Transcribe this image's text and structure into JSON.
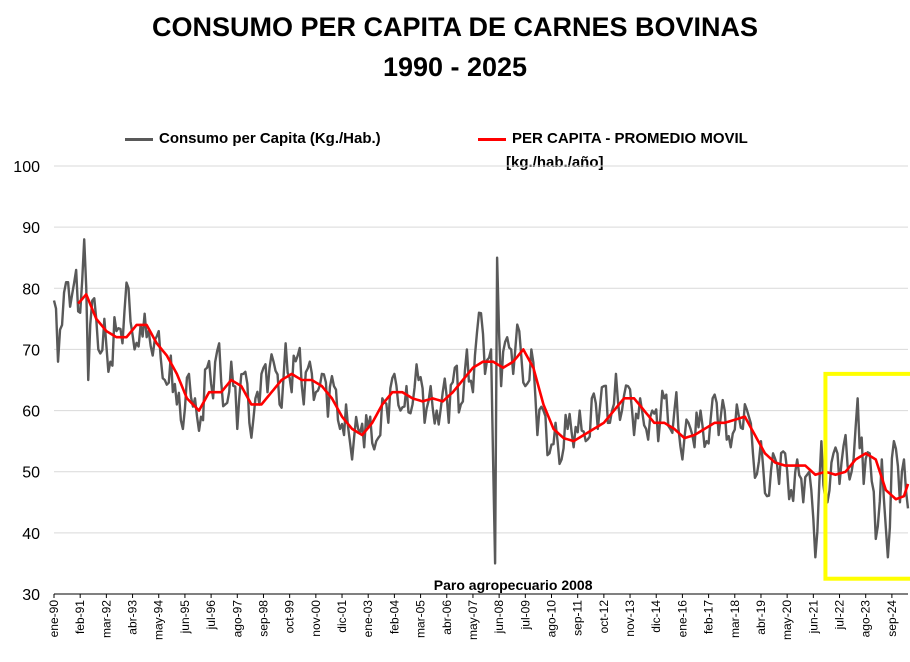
{
  "chart_data": {
    "type": "line",
    "title": "CONSUMO PER CAPITA DE CARNES BOVINAS",
    "subtitle": "1990 - 2025",
    "xlabel": "",
    "ylabel": "",
    "ylim": [
      30,
      100
    ],
    "yticks": [
      30,
      40,
      50,
      60,
      70,
      80,
      90,
      100
    ],
    "grid": "horizontal",
    "legend_position": "top",
    "x_tick_labels": [
      "ene-90",
      "feb-91",
      "mar-92",
      "abr-93",
      "may-94",
      "jun-95",
      "jul-96",
      "ago-97",
      "sep-98",
      "oct-99",
      "nov-00",
      "dic-01",
      "ene-03",
      "feb-04",
      "mar-05",
      "abr-06",
      "may-07",
      "jun-08",
      "jul-09",
      "ago-10",
      "sep-11",
      "oct-12",
      "nov-13",
      "dic-14",
      "ene-16",
      "feb-17",
      "mar-18",
      "abr-19",
      "may-20",
      "jun-21",
      "jul-22",
      "ago-23",
      "sep-24"
    ],
    "annotation": "Paro agropecuario 2008",
    "highlight": {
      "x_start": "ene-22",
      "x_end": "may-25",
      "y_range": [
        32.5,
        66
      ],
      "color": "#FFFF00"
    },
    "series": [
      {
        "name": "Consumo per Capita (Kg./Hab.)",
        "color": "#595959",
        "anchor_points": [
          [
            "ene-90",
            78
          ],
          [
            "mar-90",
            68
          ],
          [
            "may-90",
            74
          ],
          [
            "jul-90",
            81
          ],
          [
            "oct-90",
            79
          ],
          [
            "dic-90",
            83
          ],
          [
            "feb-91",
            76
          ],
          [
            "abr-91",
            88
          ],
          [
            "jun-91",
            65
          ],
          [
            "ago-91",
            78
          ],
          [
            "nov-91",
            70
          ],
          [
            "feb-92",
            75
          ],
          [
            "may-92",
            68
          ],
          [
            "ago-92",
            73
          ],
          [
            "nov-92",
            71
          ],
          [
            "feb-93",
            80
          ],
          [
            "may-93",
            70
          ],
          [
            "ago-93",
            74
          ],
          [
            "nov-93",
            72
          ],
          [
            "feb-94",
            69
          ],
          [
            "may-94",
            73
          ],
          [
            "ago-94",
            65
          ],
          [
            "nov-94",
            69
          ],
          [
            "feb-95",
            61
          ],
          [
            "may-95",
            57
          ],
          [
            "ago-95",
            66
          ],
          [
            "nov-95",
            62
          ],
          [
            "feb-96",
            59
          ],
          [
            "may-96",
            67
          ],
          [
            "ago-96",
            62
          ],
          [
            "nov-96",
            71
          ],
          [
            "feb-97",
            61
          ],
          [
            "may-97",
            68
          ],
          [
            "ago-97",
            57
          ],
          [
            "nov-97",
            66
          ],
          [
            "feb-98",
            58
          ],
          [
            "may-98",
            62
          ],
          [
            "ago-98",
            66
          ],
          [
            "nov-98",
            63
          ],
          [
            "feb-99",
            68
          ],
          [
            "may-99",
            61
          ],
          [
            "ago-99",
            71
          ],
          [
            "nov-99",
            63
          ],
          [
            "feb-00",
            69
          ],
          [
            "may-00",
            61
          ],
          [
            "ago-00",
            68
          ],
          [
            "nov-00",
            63
          ],
          [
            "feb-01",
            66
          ],
          [
            "may-01",
            59
          ],
          [
            "ago-01",
            64
          ],
          [
            "nov-01",
            57
          ],
          [
            "feb-02",
            61
          ],
          [
            "may-02",
            52
          ],
          [
            "ago-02",
            57
          ],
          [
            "nov-02",
            54
          ],
          [
            "feb-03",
            59
          ],
          [
            "may-03",
            55
          ],
          [
            "ago-03",
            62
          ],
          [
            "nov-03",
            58
          ],
          [
            "feb-04",
            66
          ],
          [
            "may-04",
            60
          ],
          [
            "ago-04",
            64
          ],
          [
            "nov-04",
            61
          ],
          [
            "feb-05",
            65
          ],
          [
            "may-05",
            58
          ],
          [
            "ago-05",
            64
          ],
          [
            "nov-05",
            60
          ],
          [
            "feb-06",
            63
          ],
          [
            "may-06",
            58
          ],
          [
            "ago-06",
            67
          ],
          [
            "nov-06",
            61
          ],
          [
            "feb-07",
            70
          ],
          [
            "may-07",
            63
          ],
          [
            "ago-07",
            76
          ],
          [
            "nov-07",
            66
          ],
          [
            "feb-08",
            70
          ],
          [
            "abr-08",
            35
          ],
          [
            "may-08",
            85
          ],
          [
            "jul-08",
            64
          ],
          [
            "oct-08",
            72
          ],
          [
            "ene-09",
            66
          ],
          [
            "abr-09",
            73
          ],
          [
            "jul-09",
            64
          ],
          [
            "oct-09",
            70
          ],
          [
            "ene-10",
            56
          ],
          [
            "abr-10",
            60
          ],
          [
            "jul-10",
            53
          ],
          [
            "oct-10",
            58
          ],
          [
            "ene-11",
            52
          ],
          [
            "abr-11",
            57
          ],
          [
            "jul-11",
            54
          ],
          [
            "oct-11",
            60
          ],
          [
            "ene-12",
            55
          ],
          [
            "abr-12",
            62
          ],
          [
            "jul-12",
            57
          ],
          [
            "oct-12",
            64
          ],
          [
            "ene-13",
            58
          ],
          [
            "abr-13",
            66
          ],
          [
            "jul-13",
            60
          ],
          [
            "oct-13",
            64
          ],
          [
            "ene-14",
            56
          ],
          [
            "abr-14",
            62
          ],
          [
            "jul-14",
            57
          ],
          [
            "oct-14",
            60
          ],
          [
            "ene-15",
            55
          ],
          [
            "abr-15",
            62
          ],
          [
            "jul-15",
            57
          ],
          [
            "oct-15",
            63
          ],
          [
            "ene-16",
            52
          ],
          [
            "abr-16",
            58
          ],
          [
            "jul-16",
            54
          ],
          [
            "oct-16",
            60
          ],
          [
            "ene-17",
            55
          ],
          [
            "abr-17",
            62
          ],
          [
            "jul-17",
            56
          ],
          [
            "oct-17",
            60
          ],
          [
            "ene-18",
            54
          ],
          [
            "abr-18",
            61
          ],
          [
            "jul-18",
            57
          ],
          [
            "oct-18",
            59
          ],
          [
            "ene-19",
            49
          ],
          [
            "abr-19",
            55
          ],
          [
            "jul-19",
            46
          ],
          [
            "oct-19",
            53
          ],
          [
            "ene-20",
            48
          ],
          [
            "abr-20",
            53
          ],
          [
            "jul-20",
            47
          ],
          [
            "oct-20",
            52
          ],
          [
            "ene-21",
            45
          ],
          [
            "abr-21",
            50
          ],
          [
            "jul-21",
            36
          ],
          [
            "oct-21",
            55
          ],
          [
            "ene-22",
            45
          ],
          [
            "abr-22",
            53
          ],
          [
            "jul-22",
            48
          ],
          [
            "oct-22",
            56
          ],
          [
            "ene-23",
            50
          ],
          [
            "abr-23",
            62
          ],
          [
            "jul-23",
            48
          ],
          [
            "oct-23",
            53
          ],
          [
            "ene-24",
            39
          ],
          [
            "abr-24",
            52
          ],
          [
            "jul-24",
            36
          ],
          [
            "oct-24",
            55
          ],
          [
            "ene-25",
            45
          ],
          [
            "mar-25",
            52
          ],
          [
            "may-25",
            44
          ]
        ]
      },
      {
        "name": "PER CAPITA - PROMEDIO MOVIL",
        "name_line2": "[kg./hab./año]",
        "color": "#FF0000",
        "anchor_points": [
          [
            "ene-91",
            77.5
          ],
          [
            "may-91",
            79
          ],
          [
            "oct-91",
            75
          ],
          [
            "mar-92",
            73
          ],
          [
            "ago-92",
            72
          ],
          [
            "ene-93",
            72
          ],
          [
            "jun-93",
            74
          ],
          [
            "nov-93",
            74
          ],
          [
            "abr-94",
            71
          ],
          [
            "sep-94",
            69
          ],
          [
            "feb-95",
            66
          ],
          [
            "jul-95",
            62
          ],
          [
            "ene-96",
            60
          ],
          [
            "jun-96",
            63
          ],
          [
            "dic-96",
            63
          ],
          [
            "may-97",
            65
          ],
          [
            "oct-97",
            64
          ],
          [
            "mar-98",
            61
          ],
          [
            "ago-98",
            61
          ],
          [
            "ene-99",
            63
          ],
          [
            "jun-99",
            65
          ],
          [
            "nov-99",
            66
          ],
          [
            "abr-00",
            65
          ],
          [
            "sep-00",
            65
          ],
          [
            "feb-01",
            64
          ],
          [
            "jul-01",
            62
          ],
          [
            "dic-01",
            59
          ],
          [
            "may-02",
            57
          ],
          [
            "oct-02",
            56
          ],
          [
            "mar-03",
            58
          ],
          [
            "ago-03",
            61
          ],
          [
            "ene-04",
            63
          ],
          [
            "jun-04",
            63
          ],
          [
            "nov-04",
            62
          ],
          [
            "abr-05",
            61.5
          ],
          [
            "sep-05",
            62
          ],
          [
            "feb-06",
            61.5
          ],
          [
            "jul-06",
            63
          ],
          [
            "dic-06",
            65
          ],
          [
            "may-07",
            67
          ],
          [
            "oct-07",
            68
          ],
          [
            "mar-08",
            68
          ],
          [
            "ago-08",
            67
          ],
          [
            "ene-09",
            68
          ],
          [
            "jun-09",
            70
          ],
          [
            "nov-09",
            67
          ],
          [
            "abr-10",
            61
          ],
          [
            "sep-10",
            57
          ],
          [
            "feb-11",
            55.5
          ],
          [
            "jul-11",
            55
          ],
          [
            "dic-11",
            56
          ],
          [
            "may-12",
            57
          ],
          [
            "oct-12",
            58
          ],
          [
            "mar-13",
            60
          ],
          [
            "ago-13",
            62
          ],
          [
            "ene-14",
            62
          ],
          [
            "jun-14",
            60
          ],
          [
            "nov-14",
            58
          ],
          [
            "abr-15",
            58
          ],
          [
            "sep-15",
            57
          ],
          [
            "feb-16",
            55.5
          ],
          [
            "jul-16",
            56
          ],
          [
            "dic-16",
            57
          ],
          [
            "may-17",
            58
          ],
          [
            "oct-17",
            58
          ],
          [
            "mar-18",
            58.5
          ],
          [
            "ago-18",
            59
          ],
          [
            "ene-19",
            56
          ],
          [
            "jun-19",
            53
          ],
          [
            "nov-19",
            51.5
          ],
          [
            "abr-20",
            51
          ],
          [
            "sep-20",
            51
          ],
          [
            "feb-21",
            51
          ],
          [
            "jul-21",
            49.5
          ],
          [
            "dic-21",
            50
          ],
          [
            "may-22",
            49.5
          ],
          [
            "oct-22",
            50
          ],
          [
            "mar-23",
            52
          ],
          [
            "ago-23",
            53
          ],
          [
            "ene-24",
            52
          ],
          [
            "jun-24",
            47
          ],
          [
            "nov-24",
            45.5
          ],
          [
            "mar-25",
            46
          ],
          [
            "may-25",
            48
          ]
        ]
      }
    ]
  }
}
